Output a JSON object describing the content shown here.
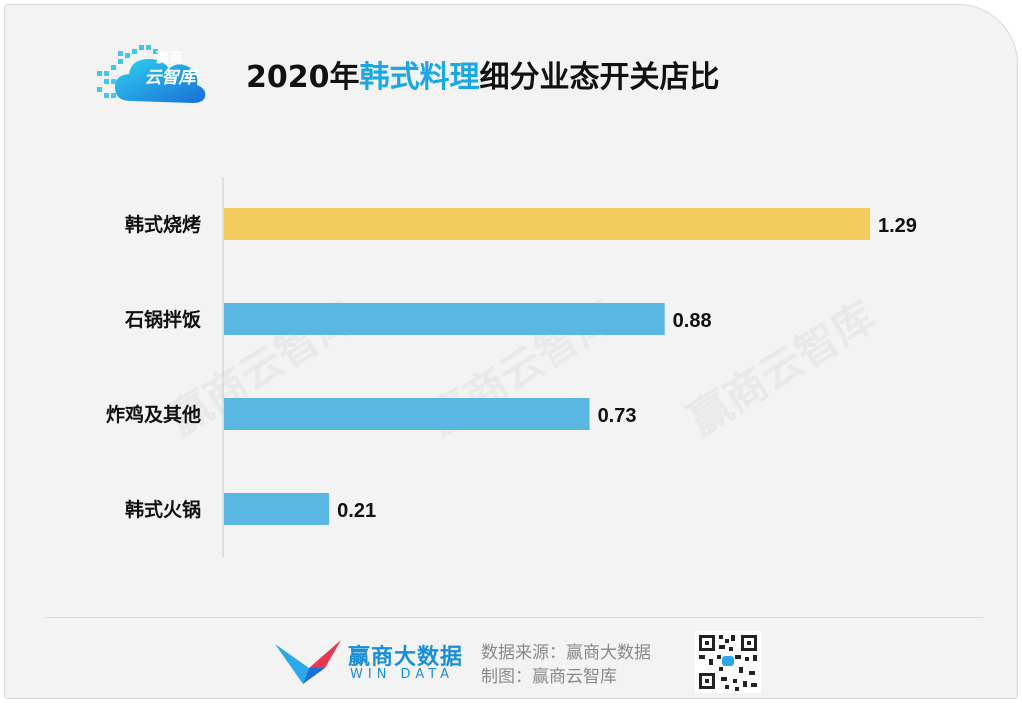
{
  "logo": {
    "line1": "赢商",
    "line2": "云智库"
  },
  "title": {
    "prefix": "2020年",
    "highlight": "韩式料理",
    "suffix": "细分业态开关店比"
  },
  "watermark_text": "赢商云智库",
  "chart_data": {
    "type": "bar",
    "orientation": "horizontal",
    "title": "2020年韩式料理细分业态开关店比",
    "categories": [
      "韩式烧烤",
      "石锅拌饭",
      "炸鸡及其他",
      "韩式火锅"
    ],
    "values": [
      1.29,
      0.88,
      0.73,
      0.21
    ],
    "value_labels": [
      "1.29",
      "0.88",
      "0.73",
      "0.21"
    ],
    "xlim": [
      0,
      1.29
    ],
    "grid": false,
    "legend": "none",
    "colors": {
      "highlight": "#f2cd5e",
      "default": "#5ab7e4"
    },
    "highlight_index": 0
  },
  "footer": {
    "brand_cn": "赢商大数据",
    "brand_en": "WIN DATA",
    "source": "数据来源：赢商大数据",
    "maker": "制图：赢商云智库"
  }
}
